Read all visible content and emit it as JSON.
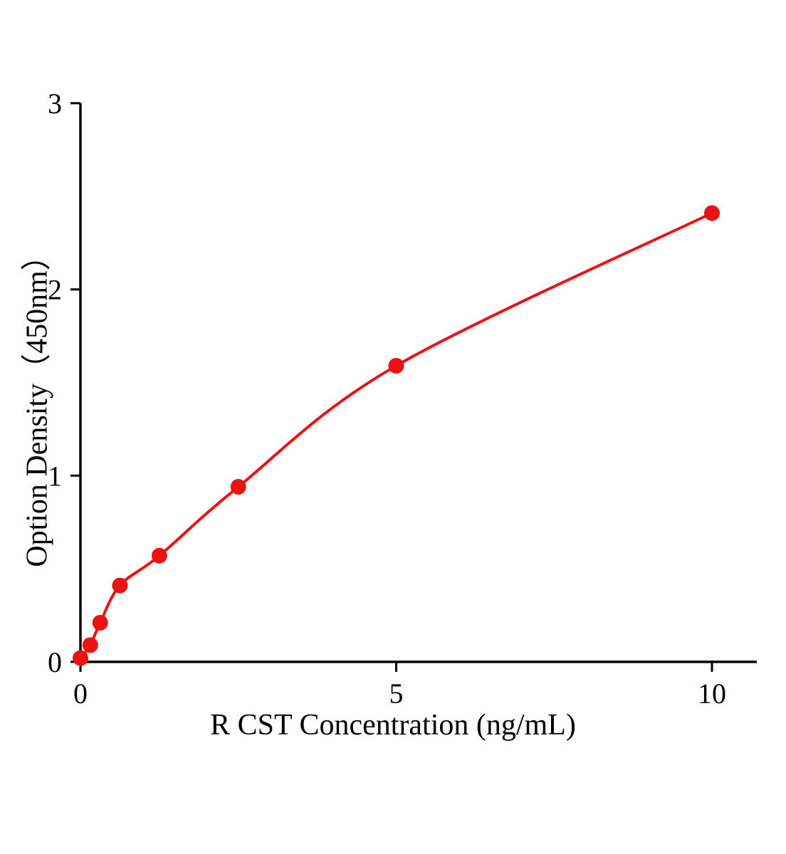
{
  "figure": {
    "background": "#ffffff"
  },
  "chart_data": {
    "type": "scatter",
    "title": "",
    "xlabel": "R CST Concentration (ng/mL)",
    "ylabel": "Option Density（450nm）",
    "x": [
      0,
      0.156,
      0.3125,
      0.625,
      1.25,
      2.5,
      5,
      10
    ],
    "y": [
      0.02,
      0.09,
      0.21,
      0.41,
      0.57,
      0.94,
      1.59,
      2.41
    ],
    "xlim": [
      0,
      10.7
    ],
    "ylim": [
      0,
      3
    ],
    "xticks": [
      0,
      5,
      10
    ],
    "yticks": [
      0,
      1,
      2,
      3
    ],
    "grid": false,
    "legend": null,
    "line_color": "#ee1111",
    "marker_color": "#ee1111",
    "axis_color": "#000000",
    "has_fit_curve": true,
    "marker_shape": "circle"
  }
}
